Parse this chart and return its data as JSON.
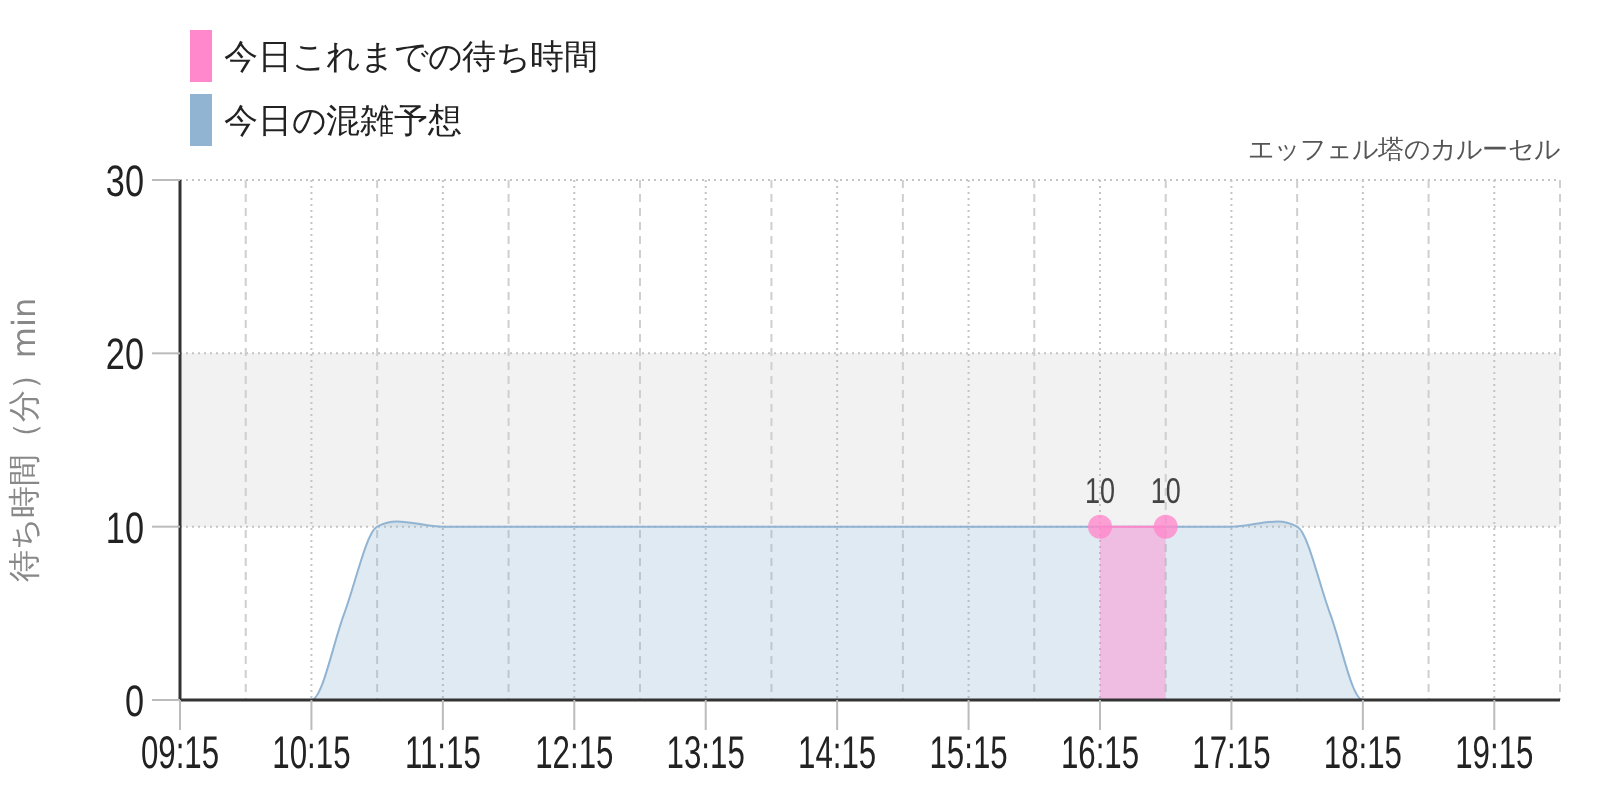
{
  "chart_data": {
    "type": "area",
    "title": "エッフェル塔のカルーセル",
    "ylabel": "待ち時間（分）min",
    "xlim": [
      9.25,
      19.75
    ],
    "xticks": [
      {
        "value": 9.25,
        "label": "09:15"
      },
      {
        "value": 9.75,
        "label": null
      },
      {
        "value": 10.25,
        "label": "10:15"
      },
      {
        "value": 10.75,
        "label": null
      },
      {
        "value": 11.25,
        "label": "11:15"
      },
      {
        "value": 11.75,
        "label": null
      },
      {
        "value": 12.25,
        "label": "12:15"
      },
      {
        "value": 12.75,
        "label": null
      },
      {
        "value": 13.25,
        "label": "13:15"
      },
      {
        "value": 13.75,
        "label": null
      },
      {
        "value": 14.25,
        "label": "14:15"
      },
      {
        "value": 14.75,
        "label": null
      },
      {
        "value": 15.25,
        "label": "15:15"
      },
      {
        "value": 15.75,
        "label": null
      },
      {
        "value": 16.25,
        "label": "16:15"
      },
      {
        "value": 16.75,
        "label": null
      },
      {
        "value": 17.25,
        "label": "17:15"
      },
      {
        "value": 17.75,
        "label": null
      },
      {
        "value": 18.25,
        "label": "18:15"
      },
      {
        "value": 18.75,
        "label": null
      },
      {
        "value": 19.25,
        "label": "19:15"
      },
      {
        "value": 19.75,
        "label": null
      }
    ],
    "ylim": [
      0,
      30
    ],
    "yticks": [
      0,
      10,
      20,
      30
    ],
    "grid": true,
    "legend": "top left",
    "bands": [
      {
        "axis": "y",
        "from": 10,
        "to": 20,
        "color": "#f2f2f2"
      }
    ],
    "series": [
      {
        "name": "今日これまでの待ち時間",
        "color": "#ff88cc",
        "marker": "circle",
        "x": [
          16.25,
          16.75
        ],
        "values": [
          10,
          10
        ],
        "value_labels": [
          "10",
          "10"
        ]
      },
      {
        "name": "今日の混雑予想",
        "color": "#90b4d2",
        "x": [
          9.25,
          10.25,
          10.5,
          10.75,
          10.9,
          11.25,
          17.25,
          17.6,
          17.75,
          18.0,
          18.25,
          19.75
        ],
        "values": [
          0,
          0,
          5,
          10,
          10.3,
          10,
          10,
          10.3,
          10,
          5,
          0,
          0
        ]
      }
    ]
  }
}
